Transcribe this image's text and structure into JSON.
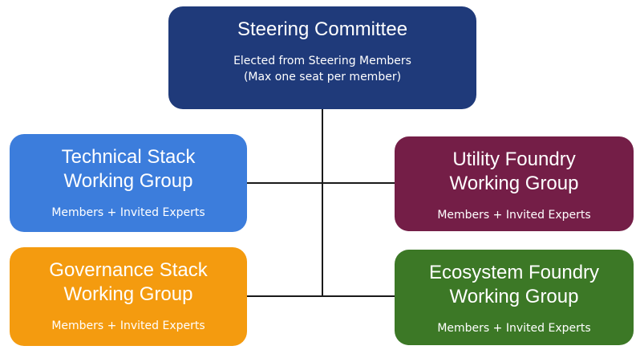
{
  "colors": {
    "steering": "#1f3a7a",
    "technical": "#3c7ddc",
    "governance": "#f49b0f",
    "utility": "#741e47",
    "ecosystem": "#3c7826",
    "connector": "#1a1a1a"
  },
  "steering": {
    "title": "Steering Committee",
    "sub_line1": "Elected from Steering Members",
    "sub_line2": "(Max one seat per member)"
  },
  "groups": {
    "technical": {
      "title_line1": "Technical Stack",
      "title_line2": "Working Group",
      "sub": "Members + Invited Experts"
    },
    "governance": {
      "title_line1": "Governance Stack",
      "title_line2": "Working Group",
      "sub": "Members + Invited Experts"
    },
    "utility": {
      "title_line1": "Utility Foundry",
      "title_line2": "Working Group",
      "sub": "Members + Invited Experts"
    },
    "ecosystem": {
      "title_line1": "Ecosystem Foundry",
      "title_line2": "Working Group",
      "sub": "Members + Invited Experts"
    }
  }
}
